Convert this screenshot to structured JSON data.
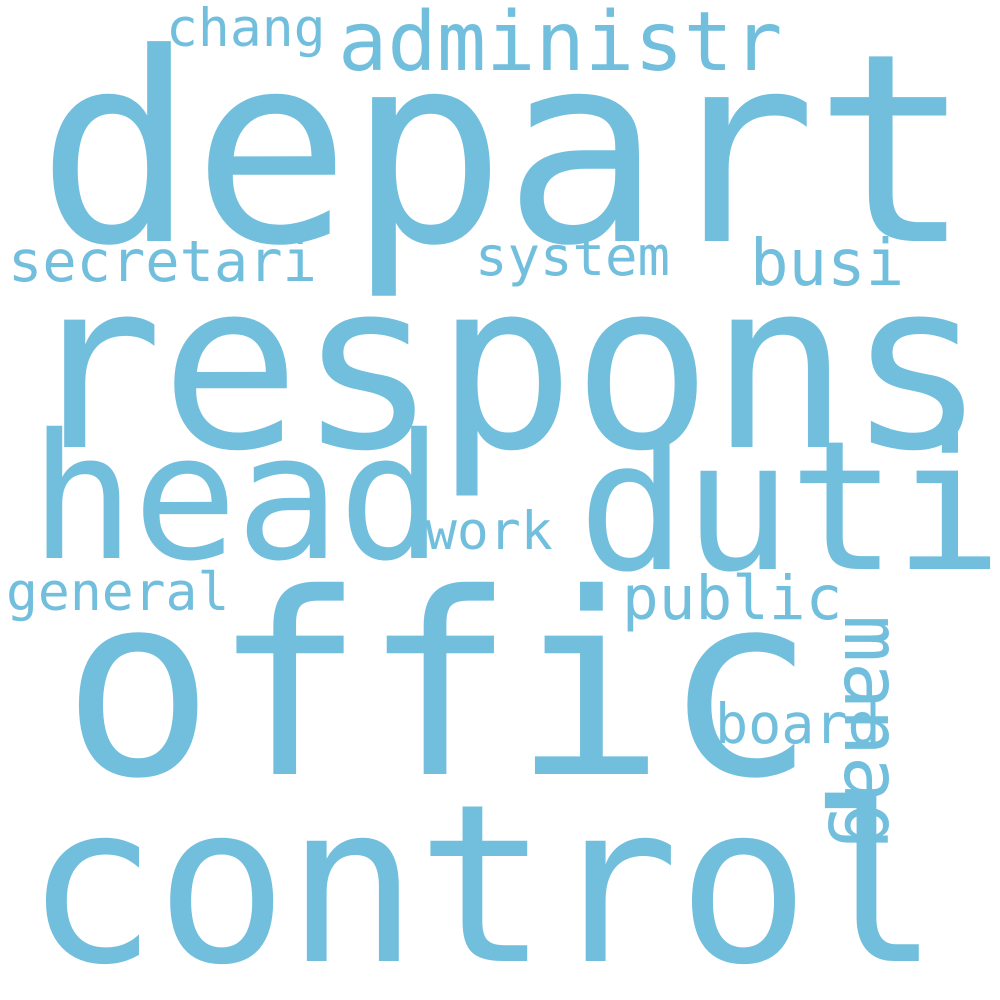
{
  "wordcloud": {
    "color": "#72bfdd",
    "background": "#ffffff",
    "words": {
      "depart": "depart",
      "respons": "respons",
      "offic": "offic",
      "control": "control",
      "head": "head",
      "duti": "duti",
      "administr": "administr",
      "chang": "chang",
      "secretari": "secretari",
      "system": "system",
      "busi": "busi",
      "work": "work",
      "general": "general",
      "public": "public",
      "board": "board",
      "manag": "manag"
    }
  }
}
